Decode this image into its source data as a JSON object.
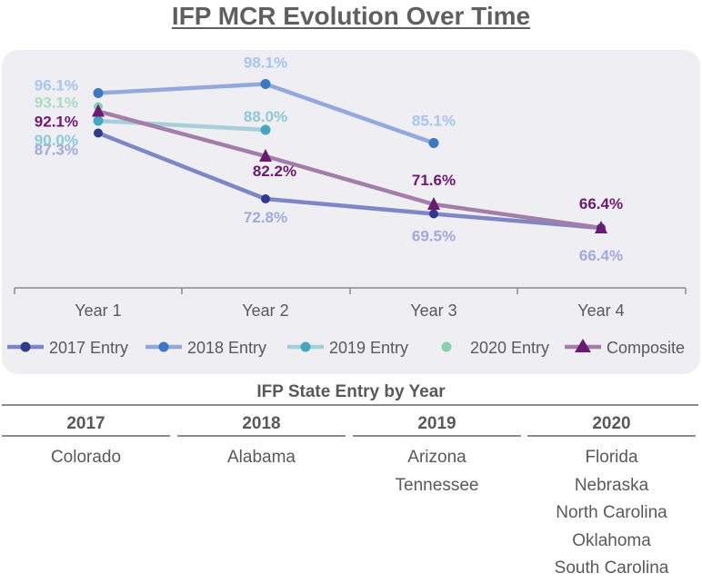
{
  "title": "IFP MCR Evolution Over Time",
  "chart_data": {
    "type": "line",
    "categories": [
      "Year 1",
      "Year 2",
      "Year 3",
      "Year 4"
    ],
    "ylim": [
      58,
      101
    ],
    "series": [
      {
        "name": "2017 Entry",
        "key": "e2017",
        "values": [
          87.3,
          72.8,
          69.5,
          66.4
        ],
        "color": "#7e86c6",
        "marker_color": "#2e3a8c",
        "label_color": "#a1a9dd",
        "marker": "circle"
      },
      {
        "name": "2018 Entry",
        "key": "e2018",
        "values": [
          96.1,
          98.1,
          85.1,
          null
        ],
        "color": "#93a9dc",
        "marker_color": "#3a78c3",
        "label_color": "#a7c6ec",
        "marker": "circle"
      },
      {
        "name": "2019 Entry",
        "key": "e2019",
        "values": [
          90.0,
          88.0,
          null,
          null
        ],
        "color": "#a6cfd8",
        "marker_color": "#43a7bf",
        "label_color": "#8ccad6",
        "marker": "circle"
      },
      {
        "name": "2020 Entry",
        "key": "e2020",
        "values": [
          93.1,
          null,
          null,
          null
        ],
        "color": "#a8dcc1",
        "marker_color": "#88d1ad",
        "label_color": "#a8dcc1",
        "marker": "circle"
      },
      {
        "name": "Composite",
        "key": "comp",
        "values": [
          92.1,
          82.2,
          71.6,
          66.4
        ],
        "color": "#a27fa9",
        "marker_color": "#6b1a70",
        "label_color": "#6b1a70",
        "marker": "triangle"
      }
    ],
    "data_labels": {
      "e2017": [
        "87.3%",
        "72.8%",
        "69.5%",
        "66.4%"
      ],
      "e2018": [
        "96.1%",
        "98.1%",
        "85.1%"
      ],
      "e2019": [
        "90.0%",
        "88.0%"
      ],
      "e2020": [
        "93.1%"
      ],
      "comp": [
        "92.1%",
        "82.2%",
        "71.6%",
        "66.4%"
      ]
    }
  },
  "table": {
    "title": "IFP State Entry by Year",
    "columns": [
      {
        "year": "2017",
        "states": [
          "Colorado"
        ]
      },
      {
        "year": "2018",
        "states": [
          "Alabama"
        ]
      },
      {
        "year": "2019",
        "states": [
          "Arizona",
          "Tennessee"
        ]
      },
      {
        "year": "2020",
        "states": [
          "Florida",
          "Nebraska",
          "North Carolina",
          "Oklahoma",
          "South Carolina"
        ]
      }
    ]
  }
}
